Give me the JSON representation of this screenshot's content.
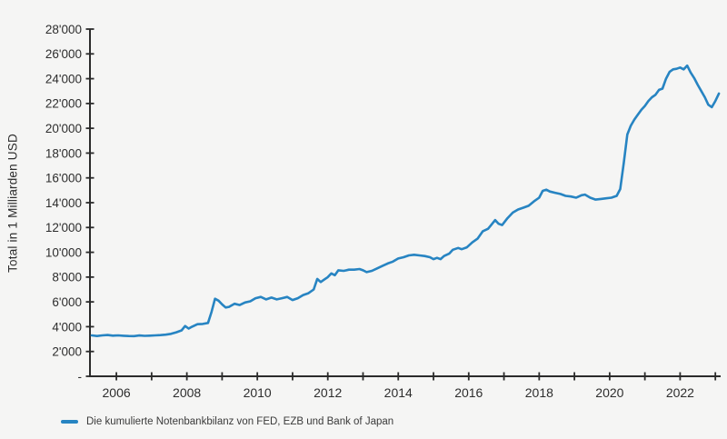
{
  "colors": {
    "series": "#2784c2",
    "axis": "#2b2b2b",
    "text": "#2d2d2d",
    "background": "#f5f5f4"
  },
  "chart_data": {
    "type": "line",
    "title": "",
    "xlabel": "",
    "ylabel": "Total in 1 Milliarden USD",
    "grid": false,
    "x_domain": [
      2005.25,
      2023.15
    ],
    "y_domain": [
      0,
      28000
    ],
    "y_ticks": [
      {
        "value": 0,
        "label": "-"
      },
      {
        "value": 2000,
        "label": "2'000"
      },
      {
        "value": 4000,
        "label": "4'000"
      },
      {
        "value": 6000,
        "label": "6'000"
      },
      {
        "value": 8000,
        "label": "8'000"
      },
      {
        "value": 10000,
        "label": "10'000"
      },
      {
        "value": 12000,
        "label": "12'000"
      },
      {
        "value": 14000,
        "label": "14'000"
      },
      {
        "value": 16000,
        "label": "16'000"
      },
      {
        "value": 18000,
        "label": "18'000"
      },
      {
        "value": 20000,
        "label": "20'000"
      },
      {
        "value": 22000,
        "label": "22'000"
      },
      {
        "value": 24000,
        "label": "24'000"
      },
      {
        "value": 26000,
        "label": "26'000"
      },
      {
        "value": 28000,
        "label": "28'000"
      }
    ],
    "x_ticks": [
      {
        "year": 2006,
        "label": "2006"
      },
      {
        "year": 2007,
        "label": ""
      },
      {
        "year": 2008,
        "label": "2008"
      },
      {
        "year": 2009,
        "label": ""
      },
      {
        "year": 2010,
        "label": "2010"
      },
      {
        "year": 2011,
        "label": ""
      },
      {
        "year": 2012,
        "label": "2012"
      },
      {
        "year": 2013,
        "label": ""
      },
      {
        "year": 2014,
        "label": "2014"
      },
      {
        "year": 2015,
        "label": ""
      },
      {
        "year": 2016,
        "label": "2016"
      },
      {
        "year": 2017,
        "label": ""
      },
      {
        "year": 2018,
        "label": "2018"
      },
      {
        "year": 2019,
        "label": ""
      },
      {
        "year": 2020,
        "label": "2020"
      },
      {
        "year": 2021,
        "label": ""
      },
      {
        "year": 2022,
        "label": "2022"
      },
      {
        "year": 2023,
        "label": ""
      }
    ],
    "legend": {
      "position": "bottom-left",
      "entries": [
        {
          "label": "Die kumulierte Notenbankbilanz von FED, EZB und Bank of Japan",
          "color": "#2784c2"
        }
      ]
    },
    "series": [
      {
        "name": "Die kumulierte Notenbankbilanz von FED, EZB und Bank of Japan",
        "color": "#2784c2",
        "points": [
          [
            2005.3,
            3300
          ],
          [
            2005.45,
            3250
          ],
          [
            2005.6,
            3300
          ],
          [
            2005.75,
            3330
          ],
          [
            2005.9,
            3280
          ],
          [
            2006.05,
            3300
          ],
          [
            2006.2,
            3270
          ],
          [
            2006.35,
            3250
          ],
          [
            2006.5,
            3240
          ],
          [
            2006.65,
            3290
          ],
          [
            2006.8,
            3260
          ],
          [
            2006.95,
            3280
          ],
          [
            2007.1,
            3300
          ],
          [
            2007.25,
            3320
          ],
          [
            2007.4,
            3360
          ],
          [
            2007.55,
            3420
          ],
          [
            2007.7,
            3550
          ],
          [
            2007.85,
            3700
          ],
          [
            2007.95,
            4050
          ],
          [
            2008.05,
            3850
          ],
          [
            2008.15,
            4000
          ],
          [
            2008.3,
            4200
          ],
          [
            2008.45,
            4220
          ],
          [
            2008.6,
            4300
          ],
          [
            2008.7,
            5200
          ],
          [
            2008.8,
            6250
          ],
          [
            2008.9,
            6100
          ],
          [
            2009.0,
            5800
          ],
          [
            2009.1,
            5550
          ],
          [
            2009.2,
            5600
          ],
          [
            2009.35,
            5850
          ],
          [
            2009.5,
            5750
          ],
          [
            2009.65,
            5950
          ],
          [
            2009.8,
            6050
          ],
          [
            2009.95,
            6300
          ],
          [
            2010.1,
            6400
          ],
          [
            2010.25,
            6200
          ],
          [
            2010.4,
            6350
          ],
          [
            2010.55,
            6200
          ],
          [
            2010.7,
            6300
          ],
          [
            2010.85,
            6400
          ],
          [
            2011.0,
            6150
          ],
          [
            2011.15,
            6300
          ],
          [
            2011.3,
            6550
          ],
          [
            2011.45,
            6700
          ],
          [
            2011.6,
            7000
          ],
          [
            2011.7,
            7850
          ],
          [
            2011.8,
            7600
          ],
          [
            2011.9,
            7800
          ],
          [
            2012.0,
            8000
          ],
          [
            2012.1,
            8300
          ],
          [
            2012.2,
            8150
          ],
          [
            2012.3,
            8550
          ],
          [
            2012.45,
            8500
          ],
          [
            2012.6,
            8600
          ],
          [
            2012.75,
            8600
          ],
          [
            2012.9,
            8650
          ],
          [
            2013.0,
            8550
          ],
          [
            2013.1,
            8400
          ],
          [
            2013.25,
            8500
          ],
          [
            2013.4,
            8700
          ],
          [
            2013.55,
            8900
          ],
          [
            2013.7,
            9100
          ],
          [
            2013.85,
            9250
          ],
          [
            2014.0,
            9500
          ],
          [
            2014.15,
            9600
          ],
          [
            2014.3,
            9750
          ],
          [
            2014.45,
            9800
          ],
          [
            2014.6,
            9750
          ],
          [
            2014.75,
            9700
          ],
          [
            2014.9,
            9600
          ],
          [
            2015.0,
            9450
          ],
          [
            2015.1,
            9550
          ],
          [
            2015.2,
            9450
          ],
          [
            2015.3,
            9700
          ],
          [
            2015.45,
            9900
          ],
          [
            2015.55,
            10200
          ],
          [
            2015.7,
            10350
          ],
          [
            2015.8,
            10250
          ],
          [
            2015.95,
            10400
          ],
          [
            2016.1,
            10800
          ],
          [
            2016.25,
            11100
          ],
          [
            2016.4,
            11700
          ],
          [
            2016.55,
            11900
          ],
          [
            2016.65,
            12250
          ],
          [
            2016.75,
            12600
          ],
          [
            2016.85,
            12300
          ],
          [
            2016.95,
            12200
          ],
          [
            2017.1,
            12750
          ],
          [
            2017.25,
            13200
          ],
          [
            2017.4,
            13450
          ],
          [
            2017.55,
            13600
          ],
          [
            2017.7,
            13750
          ],
          [
            2017.85,
            14100
          ],
          [
            2018.0,
            14400
          ],
          [
            2018.1,
            14950
          ],
          [
            2018.2,
            15050
          ],
          [
            2018.3,
            14900
          ],
          [
            2018.45,
            14800
          ],
          [
            2018.6,
            14700
          ],
          [
            2018.75,
            14550
          ],
          [
            2018.9,
            14500
          ],
          [
            2019.05,
            14400
          ],
          [
            2019.2,
            14600
          ],
          [
            2019.3,
            14650
          ],
          [
            2019.45,
            14400
          ],
          [
            2019.6,
            14250
          ],
          [
            2019.75,
            14300
          ],
          [
            2019.9,
            14350
          ],
          [
            2020.05,
            14400
          ],
          [
            2020.2,
            14550
          ],
          [
            2020.3,
            15100
          ],
          [
            2020.4,
            17200
          ],
          [
            2020.5,
            19500
          ],
          [
            2020.6,
            20200
          ],
          [
            2020.7,
            20700
          ],
          [
            2020.8,
            21100
          ],
          [
            2020.9,
            21500
          ],
          [
            2021.0,
            21800
          ],
          [
            2021.1,
            22200
          ],
          [
            2021.2,
            22500
          ],
          [
            2021.3,
            22700
          ],
          [
            2021.4,
            23100
          ],
          [
            2021.5,
            23200
          ],
          [
            2021.6,
            24000
          ],
          [
            2021.7,
            24550
          ],
          [
            2021.8,
            24750
          ],
          [
            2021.9,
            24800
          ],
          [
            2022.0,
            24900
          ],
          [
            2022.1,
            24750
          ],
          [
            2022.2,
            25050
          ],
          [
            2022.3,
            24500
          ],
          [
            2022.4,
            24050
          ],
          [
            2022.5,
            23500
          ],
          [
            2022.6,
            23000
          ],
          [
            2022.7,
            22500
          ],
          [
            2022.8,
            21900
          ],
          [
            2022.9,
            21700
          ],
          [
            2023.0,
            22200
          ],
          [
            2023.1,
            22800
          ]
        ]
      }
    ]
  }
}
